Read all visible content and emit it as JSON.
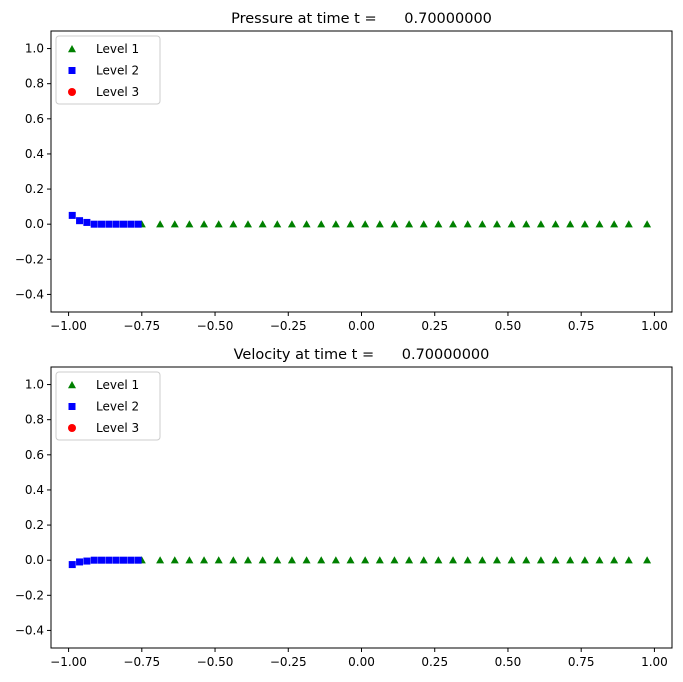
{
  "chart_data": [
    {
      "type": "scatter",
      "title": "Pressure at time t =      0.70000000",
      "xlim": [
        -1.06,
        1.06
      ],
      "ylim": [
        -0.5,
        1.1
      ],
      "xticks": [
        "-1.00",
        "-0.75",
        "-0.50",
        "-0.25",
        "0.00",
        "0.25",
        "0.50",
        "0.75",
        "1.00"
      ],
      "yticks": [
        "-0.4",
        "-0.2",
        "0.0",
        "0.2",
        "0.4",
        "0.6",
        "0.8",
        "1.0"
      ],
      "legend_position": "top-left",
      "series": [
        {
          "name": "Level 1",
          "marker": "triangle",
          "color": "#008000",
          "x": [
            -0.75,
            -0.6875,
            -0.6375,
            -0.5875,
            -0.5375,
            -0.4875,
            -0.4375,
            -0.3875,
            -0.3375,
            -0.2875,
            -0.2375,
            -0.1875,
            -0.1375,
            -0.0875,
            -0.0375,
            0.0125,
            0.0625,
            0.1125,
            0.1625,
            0.2125,
            0.2625,
            0.3125,
            0.3625,
            0.4125,
            0.4625,
            0.5125,
            0.5625,
            0.6125,
            0.6625,
            0.7125,
            0.7625,
            0.8125,
            0.8625,
            0.9125,
            0.975
          ],
          "y": [
            0,
            0,
            0,
            0,
            0,
            0,
            0,
            0,
            0,
            0,
            0,
            0,
            0,
            0,
            0,
            0,
            0,
            0,
            0,
            0,
            0,
            0,
            0,
            0,
            0,
            0,
            0,
            0,
            0,
            0,
            0,
            0,
            0,
            0,
            0
          ]
        },
        {
          "name": "Level 2",
          "marker": "square",
          "color": "#0000ff",
          "x": [
            -0.9875,
            -0.9625,
            -0.9375,
            -0.9125,
            -0.8875,
            -0.8625,
            -0.8375,
            -0.8125,
            -0.7875,
            -0.7625
          ],
          "y": [
            0.05,
            0.02,
            0.01,
            0.0,
            0.0,
            0.0,
            0.0,
            0.0,
            0.0,
            0.0
          ]
        },
        {
          "name": "Level 3",
          "marker": "circle",
          "color": "#ff0000",
          "x": [],
          "y": []
        }
      ]
    },
    {
      "type": "scatter",
      "title": "Velocity at time t =      0.70000000",
      "xlim": [
        -1.06,
        1.06
      ],
      "ylim": [
        -0.5,
        1.1
      ],
      "xticks": [
        "-1.00",
        "-0.75",
        "-0.50",
        "-0.25",
        "0.00",
        "0.25",
        "0.50",
        "0.75",
        "1.00"
      ],
      "yticks": [
        "-0.4",
        "-0.2",
        "0.0",
        "0.2",
        "0.4",
        "0.6",
        "0.8",
        "1.0"
      ],
      "legend_position": "top-left",
      "series": [
        {
          "name": "Level 1",
          "marker": "triangle",
          "color": "#008000",
          "x": [
            -0.75,
            -0.6875,
            -0.6375,
            -0.5875,
            -0.5375,
            -0.4875,
            -0.4375,
            -0.3875,
            -0.3375,
            -0.2875,
            -0.2375,
            -0.1875,
            -0.1375,
            -0.0875,
            -0.0375,
            0.0125,
            0.0625,
            0.1125,
            0.1625,
            0.2125,
            0.2625,
            0.3125,
            0.3625,
            0.4125,
            0.4625,
            0.5125,
            0.5625,
            0.6125,
            0.6625,
            0.7125,
            0.7625,
            0.8125,
            0.8625,
            0.9125,
            0.975
          ],
          "y": [
            0,
            0,
            0,
            0,
            0,
            0,
            0,
            0,
            0,
            0,
            0,
            0,
            0,
            0,
            0,
            0,
            0,
            0,
            0,
            0,
            0,
            0,
            0,
            0,
            0,
            0,
            0,
            0,
            0,
            0,
            0,
            0,
            0,
            0,
            0
          ]
        },
        {
          "name": "Level 2",
          "marker": "square",
          "color": "#0000ff",
          "x": [
            -0.9875,
            -0.9625,
            -0.9375,
            -0.9125,
            -0.8875,
            -0.8625,
            -0.8375,
            -0.8125,
            -0.7875,
            -0.7625
          ],
          "y": [
            -0.025,
            -0.01,
            -0.005,
            0.0,
            0.0,
            0.0,
            0.0,
            0.0,
            0.0,
            0.0
          ]
        },
        {
          "name": "Level 3",
          "marker": "circle",
          "color": "#ff0000",
          "x": [],
          "y": []
        }
      ]
    }
  ]
}
